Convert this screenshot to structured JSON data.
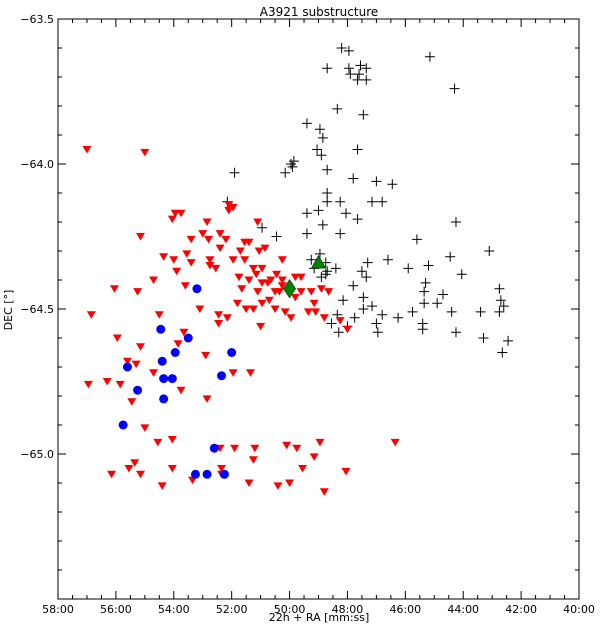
{
  "chart_data": {
    "type": "scatter",
    "title": "A3921 substructure",
    "xlabel": "22h + RA [mm:ss]",
    "ylabel": "DEC [°]",
    "xlim": [
      58,
      40
    ],
    "ylim": [
      -65.5,
      -63.5
    ],
    "x_ticks": [
      58,
      56,
      54,
      52,
      50,
      48,
      46,
      44,
      42,
      40
    ],
    "x_tick_labels": [
      "58:00",
      "56:00",
      "54:00",
      "52:00",
      "50:00",
      "48:00",
      "46:00",
      "44:00",
      "42:00",
      "40:00"
    ],
    "y_ticks": [
      -63.5,
      -64.0,
      -64.5,
      -65.0
    ],
    "y_tick_labels": [
      "−63.5",
      "−64.0",
      "−64.5",
      "−65.0"
    ],
    "grid": false,
    "colors": {
      "black": "#000000",
      "red": "#ff0000",
      "blue": "#0000ff",
      "green": "#008000"
    },
    "series": [
      {
        "marker": "plus",
        "color": "#000000",
        "points": [
          [
            48.2,
            -63.6
          ],
          [
            47.95,
            -63.61
          ],
          [
            45.15,
            -63.63
          ],
          [
            47.55,
            -63.66
          ],
          [
            47.35,
            -63.67
          ],
          [
            47.6,
            -63.69
          ],
          [
            47.35,
            -63.71
          ],
          [
            48.7,
            -63.67
          ],
          [
            47.95,
            -63.67
          ],
          [
            47.9,
            -63.69
          ],
          [
            47.65,
            -63.71
          ],
          [
            44.3,
            -63.74
          ],
          [
            48.35,
            -63.81
          ],
          [
            47.45,
            -63.83
          ],
          [
            49.4,
            -63.86
          ],
          [
            48.95,
            -63.88
          ],
          [
            48.85,
            -63.91
          ],
          [
            49.05,
            -63.95
          ],
          [
            48.9,
            -63.97
          ],
          [
            47.65,
            -63.95
          ],
          [
            49.95,
            -64.0
          ],
          [
            49.85,
            -63.99
          ],
          [
            49.9,
            -64.01
          ],
          [
            50.15,
            -64.03
          ],
          [
            48.7,
            -64.02
          ],
          [
            47.8,
            -64.05
          ],
          [
            47.0,
            -64.06
          ],
          [
            51.9,
            -64.03
          ],
          [
            46.45,
            -64.07
          ],
          [
            48.7,
            -64.1
          ],
          [
            52.15,
            -64.13
          ],
          [
            48.25,
            -64.13
          ],
          [
            46.8,
            -64.13
          ],
          [
            47.15,
            -64.13
          ],
          [
            48.7,
            -64.13
          ],
          [
            49.0,
            -64.16
          ],
          [
            49.4,
            -64.17
          ],
          [
            48.05,
            -64.17
          ],
          [
            50.95,
            -64.22
          ],
          [
            47.65,
            -64.19
          ],
          [
            48.85,
            -64.21
          ],
          [
            44.25,
            -64.2
          ],
          [
            49.4,
            -64.24
          ],
          [
            50.45,
            -64.25
          ],
          [
            48.25,
            -64.24
          ],
          [
            45.6,
            -64.26
          ],
          [
            49.25,
            -64.33
          ],
          [
            48.95,
            -64.31
          ],
          [
            48.75,
            -64.34
          ],
          [
            48.7,
            -64.37
          ],
          [
            49.15,
            -64.36
          ],
          [
            48.75,
            -64.38
          ],
          [
            48.4,
            -64.36
          ],
          [
            47.5,
            -64.37
          ],
          [
            48.9,
            -64.39
          ],
          [
            47.3,
            -64.34
          ],
          [
            46.6,
            -64.33
          ],
          [
            45.9,
            -64.36
          ],
          [
            45.2,
            -64.35
          ],
          [
            44.45,
            -64.32
          ],
          [
            43.1,
            -64.3
          ],
          [
            44.05,
            -64.38
          ],
          [
            47.8,
            -64.42
          ],
          [
            47.35,
            -64.39
          ],
          [
            45.3,
            -64.41
          ],
          [
            48.15,
            -64.47
          ],
          [
            47.45,
            -64.46
          ],
          [
            47.15,
            -64.49
          ],
          [
            45.35,
            -64.44
          ],
          [
            48.35,
            -64.52
          ],
          [
            47.45,
            -64.5
          ],
          [
            47.75,
            -64.53
          ],
          [
            46.8,
            -64.52
          ],
          [
            47.0,
            -64.55
          ],
          [
            44.7,
            -64.45
          ],
          [
            45.75,
            -64.51
          ],
          [
            48.55,
            -64.55
          ],
          [
            48.0,
            -64.56
          ],
          [
            46.25,
            -64.53
          ],
          [
            45.4,
            -64.55
          ],
          [
            48.3,
            -64.58
          ],
          [
            46.95,
            -64.58
          ],
          [
            45.4,
            -64.57
          ],
          [
            44.25,
            -64.58
          ],
          [
            45.35,
            -64.48
          ],
          [
            44.9,
            -64.48
          ],
          [
            43.4,
            -64.51
          ],
          [
            44.4,
            -64.51
          ],
          [
            42.75,
            -64.43
          ],
          [
            42.7,
            -64.47
          ],
          [
            42.6,
            -64.49
          ],
          [
            42.75,
            -64.51
          ],
          [
            43.3,
            -64.6
          ],
          [
            42.45,
            -64.61
          ],
          [
            42.65,
            -64.65
          ]
        ]
      },
      {
        "marker": "triangle-down",
        "color": "#ff0000",
        "points": [
          [
            57.0,
            -63.95
          ],
          [
            55.0,
            -63.96
          ],
          [
            53.75,
            -64.17
          ],
          [
            53.95,
            -64.17
          ],
          [
            54.05,
            -64.19
          ],
          [
            52.1,
            -64.14
          ],
          [
            51.95,
            -64.15
          ],
          [
            52.1,
            -64.16
          ],
          [
            52.85,
            -64.2
          ],
          [
            51.1,
            -64.2
          ],
          [
            55.15,
            -64.25
          ],
          [
            53.0,
            -64.24
          ],
          [
            52.4,
            -64.24
          ],
          [
            52.2,
            -64.26
          ],
          [
            53.4,
            -64.26
          ],
          [
            52.8,
            -64.26
          ],
          [
            51.55,
            -64.27
          ],
          [
            51.4,
            -64.27
          ],
          [
            52.4,
            -64.29
          ],
          [
            50.85,
            -64.29
          ],
          [
            51.05,
            -64.3
          ],
          [
            53.55,
            -64.31
          ],
          [
            52.75,
            -64.33
          ],
          [
            51.7,
            -64.3
          ],
          [
            54.35,
            -64.32
          ],
          [
            54.0,
            -64.33
          ],
          [
            52.75,
            -64.35
          ],
          [
            53.4,
            -64.34
          ],
          [
            51.95,
            -64.33
          ],
          [
            52.55,
            -64.36
          ],
          [
            51.55,
            -64.33
          ],
          [
            50.25,
            -64.33
          ],
          [
            50.95,
            -64.36
          ],
          [
            51.25,
            -64.36
          ],
          [
            53.9,
            -64.37
          ],
          [
            51.15,
            -64.38
          ],
          [
            51.75,
            -64.39
          ],
          [
            50.45,
            -64.38
          ],
          [
            51.4,
            -64.4
          ],
          [
            49.6,
            -64.39
          ],
          [
            50.25,
            -64.4
          ],
          [
            50.65,
            -64.4
          ],
          [
            49.8,
            -64.39
          ],
          [
            50.95,
            -64.41
          ],
          [
            50.25,
            -64.42
          ],
          [
            50.75,
            -64.41
          ],
          [
            50.35,
            -64.44
          ],
          [
            54.7,
            -64.4
          ],
          [
            53.6,
            -64.42
          ],
          [
            51.65,
            -64.43
          ],
          [
            51.1,
            -64.44
          ],
          [
            50.5,
            -64.44
          ],
          [
            49.6,
            -64.44
          ],
          [
            49.25,
            -64.44
          ],
          [
            48.65,
            -64.44
          ],
          [
            48.9,
            -64.43
          ],
          [
            49.8,
            -64.46
          ],
          [
            50.7,
            -64.47
          ],
          [
            49.15,
            -64.48
          ],
          [
            51.8,
            -64.48
          ],
          [
            50.95,
            -64.48
          ],
          [
            51.5,
            -64.5
          ],
          [
            50.5,
            -64.5
          ],
          [
            49.1,
            -64.51
          ],
          [
            49.35,
            -64.51
          ],
          [
            53.1,
            -64.5
          ],
          [
            52.45,
            -64.52
          ],
          [
            51.25,
            -64.5
          ],
          [
            50.15,
            -64.51
          ],
          [
            49.95,
            -64.53
          ],
          [
            54.5,
            -64.52
          ],
          [
            52.15,
            -64.53
          ],
          [
            52.45,
            -64.55
          ],
          [
            48.8,
            -64.53
          ],
          [
            48.25,
            -64.54
          ],
          [
            51.0,
            -64.56
          ],
          [
            48.0,
            -64.57
          ],
          [
            56.05,
            -64.43
          ],
          [
            55.25,
            -64.44
          ],
          [
            56.85,
            -64.52
          ],
          [
            55.95,
            -64.6
          ],
          [
            53.65,
            -64.58
          ],
          [
            55.15,
            -64.63
          ],
          [
            53.85,
            -64.62
          ],
          [
            52.9,
            -64.66
          ],
          [
            55.6,
            -64.68
          ],
          [
            55.3,
            -64.69
          ],
          [
            54.7,
            -64.72
          ],
          [
            51.95,
            -64.72
          ],
          [
            51.35,
            -64.72
          ],
          [
            56.95,
            -64.76
          ],
          [
            56.3,
            -64.75
          ],
          [
            55.85,
            -64.76
          ],
          [
            53.75,
            -64.78
          ],
          [
            52.85,
            -64.81
          ],
          [
            55.45,
            -64.82
          ],
          [
            55.0,
            -64.91
          ],
          [
            54.05,
            -64.95
          ],
          [
            54.55,
            -64.96
          ],
          [
            52.4,
            -64.98
          ],
          [
            51.9,
            -64.98
          ],
          [
            51.2,
            -64.98
          ],
          [
            50.1,
            -64.97
          ],
          [
            48.95,
            -64.96
          ],
          [
            49.75,
            -64.98
          ],
          [
            49.15,
            -65.01
          ],
          [
            51.25,
            -65.02
          ],
          [
            46.35,
            -64.96
          ],
          [
            55.35,
            -65.03
          ],
          [
            52.35,
            -65.05
          ],
          [
            52.35,
            -65.07
          ],
          [
            55.55,
            -65.05
          ],
          [
            54.05,
            -65.05
          ],
          [
            49.55,
            -65.05
          ],
          [
            48.05,
            -65.06
          ],
          [
            56.15,
            -65.07
          ],
          [
            55.15,
            -65.07
          ],
          [
            53.35,
            -65.09
          ],
          [
            51.4,
            -65.1
          ],
          [
            50.0,
            -65.1
          ],
          [
            54.4,
            -65.11
          ],
          [
            50.4,
            -65.11
          ],
          [
            48.8,
            -65.13
          ]
        ]
      },
      {
        "marker": "circle",
        "color": "#0000ff",
        "points": [
          [
            53.2,
            -64.43
          ],
          [
            54.45,
            -64.57
          ],
          [
            55.6,
            -64.7
          ],
          [
            54.4,
            -64.68
          ],
          [
            53.95,
            -64.65
          ],
          [
            53.5,
            -64.6
          ],
          [
            52.0,
            -64.65
          ],
          [
            54.05,
            -64.74
          ],
          [
            55.25,
            -64.78
          ],
          [
            52.35,
            -64.73
          ],
          [
            54.35,
            -64.74
          ],
          [
            54.35,
            -64.81
          ],
          [
            55.75,
            -64.9
          ],
          [
            52.6,
            -64.98
          ],
          [
            53.25,
            -65.07
          ],
          [
            52.85,
            -65.07
          ],
          [
            52.25,
            -65.07
          ]
        ]
      },
      {
        "marker": "triangle-up",
        "color": "#008000",
        "points": [
          [
            49.0,
            -64.34
          ]
        ]
      },
      {
        "marker": "diamond",
        "color": "#008000",
        "points": [
          [
            50.0,
            -64.43
          ]
        ]
      }
    ]
  }
}
